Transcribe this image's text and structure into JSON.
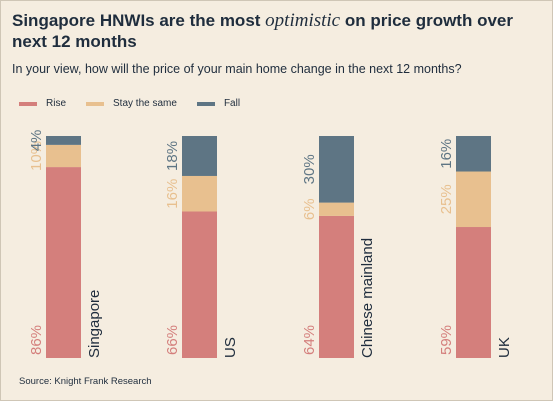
{
  "title_parts": {
    "before": "Singapore HNWIs are the most ",
    "emphasis": "optimistic",
    "after": " on price growth over next 12 months"
  },
  "subtitle": "In your view, how will the price of your main home change in the next 12 months?",
  "source": "Source: Knight Frank Research",
  "colors": {
    "rise": "#d47f7c",
    "stay": "#e8c08f",
    "fall": "#5e7584",
    "background": "#f5ede0"
  },
  "chart_data": {
    "type": "bar",
    "stacked": true,
    "orientation": "vertical",
    "categories": [
      "Singapore",
      "US",
      "Chinese mainland",
      "UK"
    ],
    "series": [
      {
        "name": "Rise",
        "values": [
          86,
          66,
          64,
          59
        ],
        "labels": [
          "86%",
          "66%",
          "64%",
          "59%"
        ]
      },
      {
        "name": "Stay the same",
        "values": [
          10,
          16,
          6,
          25
        ],
        "labels": [
          "10%",
          "16%",
          "6%",
          "25%"
        ]
      },
      {
        "name": "Fall",
        "values": [
          4,
          18,
          30,
          16
        ],
        "labels": [
          "4%",
          "18%",
          "30%",
          "16%"
        ]
      }
    ],
    "ylim": [
      0,
      100
    ],
    "grid": false,
    "legend_position": "top-left",
    "label_orientation": "vertical"
  }
}
